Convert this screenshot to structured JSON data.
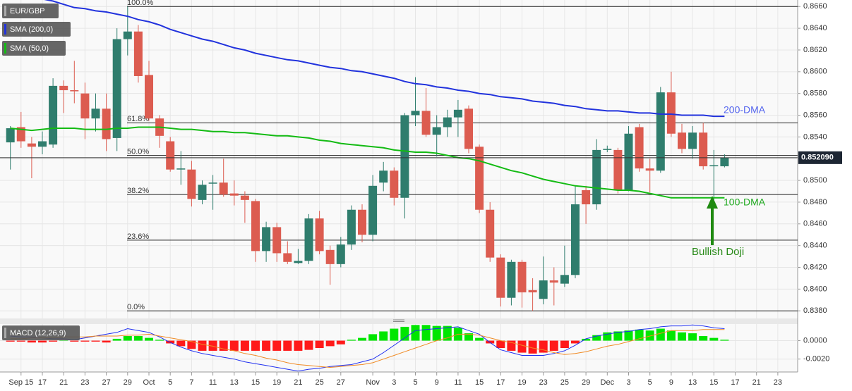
{
  "chart_data": [
    {
      "type": "candlestick",
      "title": "EUR/GBP",
      "legend": "top-left",
      "grid": true,
      "up_color": "#2f7d6d",
      "down_color": "#dc5c50",
      "categories": [
        null,
        "Sep 15",
        null,
        "17",
        null,
        "21",
        null,
        "23",
        null,
        "27",
        null,
        "29",
        null,
        "Oct",
        null,
        "5",
        null,
        "7",
        null,
        "11",
        null,
        "13",
        null,
        "15",
        null,
        "19",
        null,
        "21",
        null,
        "25",
        null,
        "27",
        null,
        null,
        "Nov",
        null,
        "3",
        null,
        "5",
        null,
        "9",
        null,
        "11",
        null,
        "15",
        null,
        "17",
        null,
        "19",
        null,
        "23",
        null,
        "25",
        null,
        "29",
        null,
        "Dec",
        null,
        "3",
        null,
        "5",
        null,
        "9",
        null,
        "13",
        null,
        "15",
        null,
        "17",
        null,
        "21",
        null,
        "23"
      ],
      "open": [
        0.8535,
        0.8549,
        0.8534,
        0.8531,
        0.8533,
        0.8587,
        0.8583,
        0.858,
        0.8557,
        0.8566,
        0.8539,
        0.863,
        0.8637,
        0.8597,
        0.8557,
        0.8536,
        0.851,
        0.851,
        0.8482,
        0.8497,
        0.8498,
        0.8488,
        0.8486,
        0.8481,
        0.8435,
        0.8457,
        0.8433,
        0.8424,
        0.8426,
        0.8465,
        0.8436,
        0.8423,
        0.8441,
        0.8473,
        0.845,
        0.8498,
        0.8509,
        0.8484,
        0.856,
        0.8564,
        0.8542,
        0.8549,
        0.8558,
        0.8566,
        0.8531,
        0.8473,
        0.8429,
        0.8392,
        0.8425,
        0.8399,
        0.8391,
        0.8408,
        0.8405,
        0.8413,
        0.8491,
        0.8478,
        0.8528,
        0.8528,
        0.8491,
        0.8549,
        0.8511,
        0.8509,
        0.8581,
        0.8544,
        0.8529,
        0.8544,
        0.8513,
        0.8513,
        null,
        null,
        null,
        null,
        null
      ],
      "high": [
        0.855,
        0.8563,
        0.854,
        0.8545,
        0.8594,
        0.8592,
        0.861,
        0.859,
        0.858,
        0.858,
        0.864,
        0.866,
        0.8643,
        0.861,
        0.856,
        0.854,
        0.8527,
        0.8518,
        0.85,
        0.8505,
        0.852,
        0.85,
        0.849,
        0.8483,
        0.8462,
        0.8461,
        0.8444,
        0.8437,
        0.8469,
        0.8472,
        0.844,
        0.8448,
        0.8477,
        0.8478,
        0.8505,
        0.8517,
        0.8512,
        0.8562,
        0.8595,
        0.8585,
        0.856,
        0.8565,
        0.8574,
        0.8569,
        0.8533,
        0.848,
        0.8432,
        0.8427,
        0.8427,
        0.841,
        0.843,
        0.842,
        0.844,
        0.8495,
        0.8495,
        0.8538,
        0.8532,
        0.853,
        0.855,
        0.8552,
        0.852,
        0.8586,
        0.86,
        0.8552,
        0.855,
        0.8553,
        0.8528,
        0.8524,
        null,
        null,
        null,
        null,
        null
      ],
      "low": [
        0.851,
        0.853,
        0.8502,
        0.8524,
        0.853,
        0.8562,
        0.8571,
        0.8538,
        0.8545,
        0.8527,
        0.8527,
        0.8615,
        0.859,
        0.8555,
        0.853,
        0.8508,
        0.8496,
        0.8476,
        0.8478,
        0.8473,
        0.8485,
        0.8477,
        0.8461,
        0.8425,
        0.8425,
        0.8425,
        0.8423,
        0.8423,
        0.8423,
        0.8432,
        0.8404,
        0.842,
        0.8436,
        0.8443,
        0.8444,
        0.849,
        0.8477,
        0.8465,
        0.855,
        0.854,
        0.8522,
        0.854,
        0.854,
        0.8525,
        0.847,
        0.8425,
        0.8384,
        0.8385,
        0.8383,
        0.838,
        0.8386,
        0.8385,
        0.8402,
        0.841,
        0.846,
        0.8473,
        0.8526,
        0.8488,
        0.849,
        0.8508,
        0.8489,
        0.8507,
        0.854,
        0.8525,
        0.852,
        0.851,
        0.8482,
        0.8512,
        null,
        null,
        null,
        null,
        null
      ],
      "close": [
        0.8548,
        0.8536,
        0.8531,
        0.8536,
        0.8587,
        0.8583,
        0.8582,
        0.8557,
        0.8566,
        0.8538,
        0.863,
        0.8637,
        0.8596,
        0.8557,
        0.8541,
        0.851,
        0.8511,
        0.8483,
        0.8496,
        0.8498,
        0.8487,
        0.8486,
        0.8482,
        0.8435,
        0.8457,
        0.8433,
        0.8425,
        0.8426,
        0.8465,
        0.8435,
        0.8423,
        0.8441,
        0.8473,
        0.845,
        0.8495,
        0.8509,
        0.8484,
        0.856,
        0.8564,
        0.8542,
        0.8549,
        0.8558,
        0.8565,
        0.8529,
        0.8473,
        0.8429,
        0.8392,
        0.8425,
        0.8397,
        0.8397,
        0.8408,
        0.8406,
        0.8413,
        0.8478,
        0.8478,
        0.8528,
        0.8529,
        0.8491,
        0.8543,
        0.8511,
        0.8509,
        0.8581,
        0.8543,
        0.8529,
        0.8544,
        0.8513,
        0.8514,
        0.8521,
        null,
        null,
        null,
        null,
        null
      ],
      "series": [
        {
          "name": "SMA (200,0)",
          "color": "#2233dd",
          "values": [
            0.8672,
            0.867,
            0.8669,
            0.8667,
            0.8665,
            0.8662,
            0.8659,
            0.8658,
            0.8656,
            0.8655,
            0.8653,
            0.8651,
            0.8648,
            0.8646,
            0.8643,
            0.8639,
            0.8636,
            0.8633,
            0.863,
            0.8628,
            0.8625,
            0.8622,
            0.862,
            0.8617,
            0.8615,
            0.8613,
            0.8611,
            0.861,
            0.8608,
            0.8606,
            0.8604,
            0.8603,
            0.8601,
            0.86,
            0.8598,
            0.8596,
            0.8594,
            0.8591,
            0.8589,
            0.8588,
            0.8586,
            0.8585,
            0.8583,
            0.8582,
            0.858,
            0.8579,
            0.8577,
            0.8576,
            0.8575,
            0.8573,
            0.8572,
            0.8571,
            0.8569,
            0.8568,
            0.8566,
            0.8565,
            0.8564,
            0.8564,
            0.8563,
            0.8562,
            0.8562,
            0.8561,
            0.8561,
            0.856,
            0.856,
            0.856,
            0.8559,
            0.8559,
            null,
            null,
            null,
            null,
            null
          ]
        },
        {
          "name": "SMA (50,0)",
          "color": "#14bb14",
          "values": [
            0.8548,
            0.8547,
            0.8546,
            0.8547,
            0.8548,
            0.8548,
            0.8548,
            0.8547,
            0.8547,
            0.8547,
            0.8548,
            0.8548,
            0.8549,
            0.8549,
            0.8549,
            0.8548,
            0.8547,
            0.8547,
            0.8546,
            0.8545,
            0.8545,
            0.8544,
            0.8544,
            0.8543,
            0.8542,
            0.8541,
            0.8541,
            0.854,
            0.8539,
            0.8537,
            0.8536,
            0.8534,
            0.8533,
            0.8532,
            0.8531,
            0.853,
            0.8528,
            0.8527,
            0.8526,
            0.8526,
            0.8525,
            0.8523,
            0.8521,
            0.852,
            0.8518,
            0.8515,
            0.8512,
            0.8509,
            0.8507,
            0.8504,
            0.8501,
            0.8499,
            0.8497,
            0.8495,
            0.8494,
            0.8493,
            0.8492,
            0.8491,
            0.8491,
            0.849,
            0.8488,
            0.8486,
            0.8484,
            0.8484,
            0.8484,
            0.8484,
            0.8484,
            0.8484,
            null,
            null,
            null,
            null,
            null
          ]
        }
      ],
      "ylim": [
        0.8373,
        0.8666
      ],
      "yticks": [
        {
          "value": 0.838,
          "label": "0.8380"
        },
        {
          "value": 0.84,
          "label": "0.8400"
        },
        {
          "value": 0.842,
          "label": "0.8420"
        },
        {
          "value": 0.844,
          "label": "0.8440"
        },
        {
          "value": 0.846,
          "label": "0.8460"
        },
        {
          "value": 0.848,
          "label": "0.8480"
        },
        {
          "value": 0.85,
          "label": "0.8500"
        },
        {
          "value": 0.852,
          "label": "0.8520"
        },
        {
          "value": 0.854,
          "label": "0.8540"
        },
        {
          "value": 0.856,
          "label": "0.8560"
        },
        {
          "value": 0.858,
          "label": "0.8580"
        },
        {
          "value": 0.86,
          "label": "0.8600"
        },
        {
          "value": 0.862,
          "label": "0.8620"
        },
        {
          "value": 0.864,
          "label": "0.8640"
        },
        {
          "value": 0.866,
          "label": "0.8660"
        }
      ],
      "last_price": {
        "value": 0.85209,
        "label": "0.852090"
      },
      "fib_levels": [
        {
          "value": 0.866,
          "label": "100.0%"
        },
        {
          "value": 0.8553,
          "label": "61.8%"
        },
        {
          "value": 0.8523,
          "label": "50.0%"
        },
        {
          "value": 0.8487,
          "label": "38.2%"
        },
        {
          "value": 0.8445,
          "label": "23.6%"
        },
        {
          "value": 0.838,
          "label": "0.0%"
        }
      ],
      "annotations": [
        "200-DMA",
        "100-DMA",
        "Bullish Doji"
      ]
    },
    {
      "type": "macd",
      "title": "MACD (12,26,9)",
      "up_color": "#00e600",
      "down_color": "#ff1a1a",
      "histogram": [
        -0.0001,
        -0.0001,
        -0.0002,
        -0.0002,
        -0.0001,
        0,
        -0.0001,
        -0.0001,
        -0.0001,
        -0.0002,
        0.0002,
        0.0005,
        0.0005,
        0.0003,
        0.0001,
        -0.0003,
        -0.0006,
        -0.0009,
        -0.0011,
        -0.0011,
        -0.0011,
        -0.0011,
        -0.0011,
        -0.0011,
        -0.0011,
        -0.0011,
        -0.0011,
        -0.0011,
        -0.001,
        -0.0008,
        -0.0006,
        -0.0004,
        0.0001,
        0.0003,
        0.0007,
        0.001,
        0.0013,
        0.0015,
        0.0017,
        0.0017,
        0.0016,
        0.0016,
        0.0014,
        0.0008,
        0.0003,
        -0.0003,
        -0.0008,
        -0.0011,
        -0.0013,
        -0.0014,
        -0.0013,
        -0.0011,
        -0.0008,
        -0.0003,
        0.0002,
        0.0006,
        0.0009,
        0.001,
        0.0011,
        0.0012,
        0.0011,
        0.0013,
        0.0011,
        0.0009,
        0.0008,
        0.0005,
        0.0003,
        0.0001,
        null,
        null,
        null,
        null,
        null
      ],
      "series": [
        {
          "color": "#1f2ff0",
          "values": [
            0.0005,
            0.0004,
            0.0004,
            0.0003,
            0.0002,
            0.0002,
            0.0001,
            0.0003,
            0.0005,
            0.0007,
            0.0009,
            0.0013,
            0.0011,
            0.0009,
            0.0004,
            -0.0002,
            -0.0007,
            -0.0011,
            -0.0014,
            -0.0016,
            -0.0018,
            -0.002,
            -0.0023,
            -0.0025,
            -0.0027,
            -0.0029,
            -0.0031,
            -0.0033,
            -0.0031,
            -0.003,
            -0.0028,
            -0.0027,
            -0.0026,
            -0.0023,
            -0.002,
            -0.0013,
            -0.0005,
            0.0003,
            0.0011,
            0.0012,
            0.0013,
            0.0014,
            0.0015,
            0.0011,
            0.0007,
            -0.0002,
            -0.001,
            -0.0013,
            -0.0016,
            -0.0016,
            -0.0016,
            -0.0014,
            -0.0011,
            -0.0005,
            0.0002,
            0.0005,
            0.0007,
            0.0009,
            0.001,
            0.0012,
            0.0013,
            0.0015,
            0.0016,
            0.0016,
            0.0017,
            0.0016,
            0.0014,
            0.0013,
            null,
            null,
            null,
            null,
            null
          ]
        },
        {
          "color": "#f08a24",
          "values": [
            0.0002,
            0.0002,
            0.0003,
            0.0003,
            0.0003,
            0.0004,
            0.0004,
            0.0004,
            0.0005,
            0.0005,
            0.0005,
            0.0006,
            0.0006,
            0.0007,
            0.0005,
            0.0003,
            0.0001,
            -0.0001,
            -0.0004,
            -0.0006,
            -0.0009,
            -0.0011,
            -0.0014,
            -0.0016,
            -0.0019,
            -0.0021,
            -0.0024,
            -0.0026,
            -0.0027,
            -0.0028,
            -0.0029,
            -0.0028,
            -0.0027,
            -0.0026,
            -0.0024,
            -0.002,
            -0.0016,
            -0.0012,
            -0.0008,
            -0.0004,
            0,
            0.0003,
            0.0007,
            0.0007,
            0.0006,
            0.0003,
            0,
            -0.0002,
            -0.0005,
            -0.0008,
            -0.001,
            -0.0013,
            -0.0015,
            -0.0014,
            -0.0012,
            -0.0009,
            -0.0006,
            -0.0004,
            -0.0001,
            0.0002,
            0.0005,
            0.0008,
            0.0011,
            0.0011,
            0.0011,
            0.0012,
            0.0012,
            0.0012,
            null,
            null,
            null,
            null,
            null
          ]
        }
      ],
      "ylim": [
        -0.0034,
        0.0018
      ],
      "yticks": [
        {
          "value": -0.002,
          "label": "-0.0020"
        },
        {
          "value": 0,
          "label": "0.0000"
        }
      ]
    }
  ]
}
